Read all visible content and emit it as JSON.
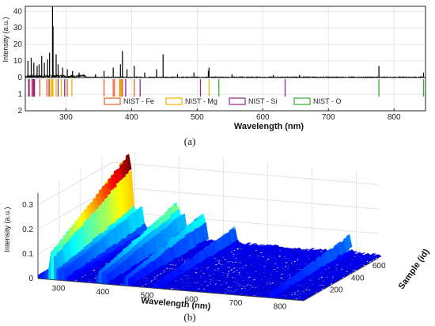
{
  "chart_data": [
    {
      "id": "a",
      "type": "line",
      "panel_label": "(a)",
      "xlabel": "Wavelength (nm)",
      "ylabel": "Intensity (a.u.)",
      "xlim": [
        238,
        848
      ],
      "ylim": [
        0,
        43
      ],
      "xticks": [
        300,
        400,
        500,
        600,
        700,
        800
      ],
      "yticks": [
        0,
        10,
        20,
        30,
        40
      ],
      "grid": true,
      "spectrum_peaks": [
        {
          "x": 242,
          "y": 10
        },
        {
          "x": 247,
          "y": 12
        },
        {
          "x": 251,
          "y": 9
        },
        {
          "x": 256,
          "y": 7
        },
        {
          "x": 259,
          "y": 8
        },
        {
          "x": 263,
          "y": 13
        },
        {
          "x": 267,
          "y": 9
        },
        {
          "x": 272,
          "y": 11
        },
        {
          "x": 275,
          "y": 15
        },
        {
          "x": 279.5,
          "y": 43
        },
        {
          "x": 280.3,
          "y": 31
        },
        {
          "x": 285,
          "y": 14
        },
        {
          "x": 288,
          "y": 8
        },
        {
          "x": 295,
          "y": 6
        },
        {
          "x": 302,
          "y": 5
        },
        {
          "x": 310,
          "y": 4
        },
        {
          "x": 320,
          "y": 3
        },
        {
          "x": 345,
          "y": 2
        },
        {
          "x": 358,
          "y": 4
        },
        {
          "x": 372,
          "y": 6
        },
        {
          "x": 383,
          "y": 8
        },
        {
          "x": 386,
          "y": 16
        },
        {
          "x": 393,
          "y": 5
        },
        {
          "x": 404,
          "y": 7
        },
        {
          "x": 420,
          "y": 3
        },
        {
          "x": 438,
          "y": 5
        },
        {
          "x": 448,
          "y": 14
        },
        {
          "x": 470,
          "y": 2
        },
        {
          "x": 495,
          "y": 3
        },
        {
          "x": 517,
          "y": 4
        },
        {
          "x": 518,
          "y": 6
        },
        {
          "x": 553,
          "y": 2
        },
        {
          "x": 616,
          "y": 1.5
        },
        {
          "x": 656,
          "y": 1.5
        },
        {
          "x": 777,
          "y": 7
        },
        {
          "x": 845,
          "y": 3
        }
      ],
      "nist_lines": [
        {
          "element": "Fe",
          "x": [
            248,
            249,
            252,
            260,
            271,
            274,
            275,
            302,
            358,
            372,
            374,
            382,
            385,
            386,
            404
          ]
        },
        {
          "element": "Mg",
          "x": [
            278,
            279,
            280,
            285,
            293,
            309,
            383,
            384,
            518
          ]
        },
        {
          "element": "Si",
          "x": [
            243,
            244,
            250,
            251,
            252,
            288,
            298,
            391,
            413,
            505,
            634
          ]
        },
        {
          "element": "O",
          "x": [
            533,
            777,
            845
          ]
        }
      ],
      "nist_axis": {
        "ylim": [
          0,
          2
        ],
        "yticks": [
          1,
          2
        ]
      },
      "legend": {
        "placement": "lower-center",
        "entries": [
          "NIST - Fe",
          "NIST - Mg",
          "NIST - Si",
          "NIST - O"
        ],
        "colors": [
          "#e5622f",
          "#f0b400",
          "#8b2a8b",
          "#2fb02f"
        ]
      }
    },
    {
      "id": "b",
      "type": "area",
      "panel_label": "(b)",
      "xlabel": "Wavelength (nm)",
      "ylabel": "Intensity (a.u.)",
      "zlabel": "Sample (id)",
      "xticks": [
        300,
        400,
        500,
        600,
        700,
        800
      ],
      "yticks": [
        0,
        0.1,
        0.2,
        0.3
      ],
      "sample_ticks": [
        200,
        400,
        600
      ],
      "xlim": [
        250,
        850
      ],
      "ylim": [
        0,
        0.35
      ],
      "sample_lim": [
        1,
        700
      ],
      "colormap": "jet",
      "surface_peaks": [
        {
          "x": 280,
          "y": 0.32
        },
        {
          "x": 285,
          "y": 0.27
        },
        {
          "x": 310,
          "y": 0.12
        },
        {
          "x": 388,
          "y": 0.14
        },
        {
          "x": 395,
          "y": 0.12
        },
        {
          "x": 405,
          "y": 0.11
        },
        {
          "x": 450,
          "y": 0.12
        },
        {
          "x": 518,
          "y": 0.07
        },
        {
          "x": 777,
          "y": 0.07
        }
      ]
    }
  ]
}
